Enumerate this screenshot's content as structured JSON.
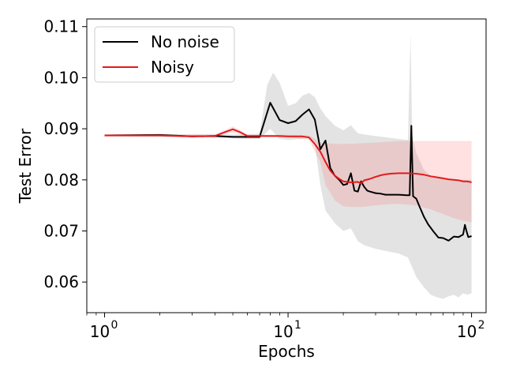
{
  "chart_data": {
    "type": "line",
    "xlabel": "Epochs",
    "ylabel": "Test Error",
    "xscale": "log",
    "xlim": [
      0.8,
      120
    ],
    "ylim": [
      0.054,
      0.1115
    ],
    "x_ticks": [
      {
        "value": 1,
        "label": "0"
      },
      {
        "value": 10,
        "label": "1"
      },
      {
        "value": 100,
        "label": "2"
      }
    ],
    "x_tick_base": "10",
    "y_ticks": [
      {
        "value": 0.06,
        "label": "0.06"
      },
      {
        "value": 0.07,
        "label": "0.07"
      },
      {
        "value": 0.08,
        "label": "0.08"
      },
      {
        "value": 0.09,
        "label": "0.09"
      },
      {
        "value": 0.1,
        "label": "0.10"
      },
      {
        "value": 0.11,
        "label": "0.11"
      }
    ],
    "grid": false,
    "legend_position": "top-left",
    "series": [
      {
        "name": "No noise",
        "color": "#000000",
        "band_color": "#808080",
        "band_opacity": 0.22,
        "points": [
          [
            1,
            0.0887
          ],
          [
            2,
            0.0888
          ],
          [
            3,
            0.0885
          ],
          [
            4,
            0.0886
          ],
          [
            5,
            0.0884
          ],
          [
            6,
            0.0884
          ],
          [
            7,
            0.0884
          ],
          [
            8,
            0.0951
          ],
          [
            9,
            0.0917
          ],
          [
            10,
            0.0911
          ],
          [
            11,
            0.0915
          ],
          [
            12,
            0.0928
          ],
          [
            13,
            0.0938
          ],
          [
            14,
            0.0918
          ],
          [
            15,
            0.086
          ],
          [
            16,
            0.0877
          ],
          [
            17,
            0.0823
          ],
          [
            18,
            0.0808
          ],
          [
            19,
            0.08
          ],
          [
            20,
            0.079
          ],
          [
            21,
            0.0792
          ],
          [
            22,
            0.0813
          ],
          [
            23,
            0.0779
          ],
          [
            24,
            0.0777
          ],
          [
            25,
            0.0797
          ],
          [
            26,
            0.0786
          ],
          [
            27,
            0.0779
          ],
          [
            28,
            0.0777
          ],
          [
            30,
            0.0774
          ],
          [
            32,
            0.0773
          ],
          [
            34,
            0.0771
          ],
          [
            36,
            0.0771
          ],
          [
            40,
            0.0771
          ],
          [
            44,
            0.077
          ],
          [
            46,
            0.077
          ],
          [
            47,
            0.0906
          ],
          [
            48,
            0.0768
          ],
          [
            50,
            0.0763
          ],
          [
            52,
            0.0748
          ],
          [
            55,
            0.0728
          ],
          [
            58,
            0.0713
          ],
          [
            62,
            0.0699
          ],
          [
            66,
            0.0687
          ],
          [
            70,
            0.0686
          ],
          [
            75,
            0.0681
          ],
          [
            80,
            0.0689
          ],
          [
            85,
            0.0688
          ],
          [
            90,
            0.0693
          ],
          [
            92,
            0.0712
          ],
          [
            94,
            0.0699
          ],
          [
            96,
            0.0688
          ],
          [
            100,
            0.069
          ]
        ],
        "band_upper": [
          [
            1,
            0.0889
          ],
          [
            4,
            0.0889
          ],
          [
            6,
            0.0889
          ],
          [
            7,
            0.089
          ],
          [
            7.7,
            0.0986
          ],
          [
            8.3,
            0.101
          ],
          [
            9,
            0.099
          ],
          [
            10,
            0.0945
          ],
          [
            11,
            0.095
          ],
          [
            12,
            0.0965
          ],
          [
            13,
            0.097
          ],
          [
            14,
            0.0962
          ],
          [
            15,
            0.094
          ],
          [
            16,
            0.0925
          ],
          [
            18,
            0.0906
          ],
          [
            20,
            0.0897
          ],
          [
            22,
            0.0907
          ],
          [
            24,
            0.0891
          ],
          [
            27,
            0.0888
          ],
          [
            30,
            0.0886
          ],
          [
            40,
            0.088
          ],
          [
            45,
            0.0878
          ],
          [
            46.5,
            0.1087
          ],
          [
            47.5,
            0.0886
          ],
          [
            50,
            0.0852
          ],
          [
            55,
            0.082
          ],
          [
            60,
            0.0808
          ],
          [
            70,
            0.0803
          ],
          [
            80,
            0.08
          ],
          [
            90,
            0.08
          ],
          [
            100,
            0.08
          ]
        ],
        "band_lower": [
          [
            1,
            0.0885
          ],
          [
            4,
            0.0883
          ],
          [
            6,
            0.088
          ],
          [
            7,
            0.088
          ],
          [
            8,
            0.09
          ],
          [
            9,
            0.088
          ],
          [
            10,
            0.0878
          ],
          [
            12,
            0.088
          ],
          [
            13,
            0.0885
          ],
          [
            14,
            0.087
          ],
          [
            15,
            0.079
          ],
          [
            16,
            0.074
          ],
          [
            18,
            0.0715
          ],
          [
            20,
            0.07
          ],
          [
            22,
            0.0705
          ],
          [
            24,
            0.068
          ],
          [
            26,
            0.0672
          ],
          [
            30,
            0.0665
          ],
          [
            35,
            0.066
          ],
          [
            40,
            0.0656
          ],
          [
            45,
            0.0648
          ],
          [
            50,
            0.061
          ],
          [
            55,
            0.059
          ],
          [
            60,
            0.0575
          ],
          [
            65,
            0.057
          ],
          [
            70,
            0.0567
          ],
          [
            75,
            0.0572
          ],
          [
            80,
            0.0575
          ],
          [
            85,
            0.057
          ],
          [
            90,
            0.0578
          ],
          [
            95,
            0.0575
          ],
          [
            100,
            0.0578
          ]
        ]
      },
      {
        "name": "Noisy",
        "color": "#e41a1c",
        "band_color": "#ff5a5a",
        "band_opacity": 0.18,
        "points": [
          [
            1,
            0.0887
          ],
          [
            2,
            0.0887
          ],
          [
            3,
            0.0885
          ],
          [
            4,
            0.0886
          ],
          [
            4.5,
            0.0893
          ],
          [
            5,
            0.0899
          ],
          [
            5.5,
            0.0893
          ],
          [
            6,
            0.0886
          ],
          [
            7,
            0.0886
          ],
          [
            8,
            0.0886
          ],
          [
            9,
            0.0886
          ],
          [
            10,
            0.0885
          ],
          [
            12,
            0.0885
          ],
          [
            13,
            0.0883
          ],
          [
            14,
            0.087
          ],
          [
            15,
            0.0855
          ],
          [
            16,
            0.0835
          ],
          [
            17,
            0.0818
          ],
          [
            18,
            0.0808
          ],
          [
            19,
            0.0802
          ],
          [
            20,
            0.0797
          ],
          [
            22,
            0.0795
          ],
          [
            24,
            0.0796
          ],
          [
            25,
            0.0793
          ],
          [
            26,
            0.0799
          ],
          [
            28,
            0.0802
          ],
          [
            30,
            0.0806
          ],
          [
            32,
            0.0809
          ],
          [
            34,
            0.0811
          ],
          [
            36,
            0.0812
          ],
          [
            40,
            0.0813
          ],
          [
            45,
            0.0813
          ],
          [
            50,
            0.0812
          ],
          [
            55,
            0.081
          ],
          [
            60,
            0.0807
          ],
          [
            65,
            0.0805
          ],
          [
            70,
            0.0803
          ],
          [
            75,
            0.0801
          ],
          [
            80,
            0.08
          ],
          [
            85,
            0.0799
          ],
          [
            90,
            0.0797
          ],
          [
            95,
            0.0797
          ],
          [
            100,
            0.0795
          ]
        ],
        "band_upper": [
          [
            1,
            0.0889
          ],
          [
            4,
            0.0889
          ],
          [
            4.5,
            0.0897
          ],
          [
            5,
            0.0905
          ],
          [
            5.5,
            0.0897
          ],
          [
            6,
            0.0889
          ],
          [
            10,
            0.0888
          ],
          [
            13,
            0.0887
          ],
          [
            14,
            0.088
          ],
          [
            15,
            0.0872
          ],
          [
            20,
            0.087
          ],
          [
            30,
            0.0873
          ],
          [
            40,
            0.0876
          ],
          [
            50,
            0.0876
          ],
          [
            60,
            0.0876
          ],
          [
            80,
            0.0876
          ],
          [
            100,
            0.0876
          ]
        ],
        "band_lower": [
          [
            1,
            0.0885
          ],
          [
            4,
            0.0884
          ],
          [
            5,
            0.0893
          ],
          [
            6,
            0.0884
          ],
          [
            10,
            0.0883
          ],
          [
            13,
            0.0878
          ],
          [
            14,
            0.0855
          ],
          [
            15,
            0.0835
          ],
          [
            16,
            0.079
          ],
          [
            18,
            0.076
          ],
          [
            20,
            0.0748
          ],
          [
            22,
            0.0747
          ],
          [
            25,
            0.0747
          ],
          [
            30,
            0.075
          ],
          [
            35,
            0.0752
          ],
          [
            40,
            0.0753
          ],
          [
            50,
            0.075
          ],
          [
            60,
            0.0742
          ],
          [
            70,
            0.0733
          ],
          [
            80,
            0.0725
          ],
          [
            90,
            0.072
          ],
          [
            100,
            0.0717
          ]
        ]
      }
    ]
  }
}
